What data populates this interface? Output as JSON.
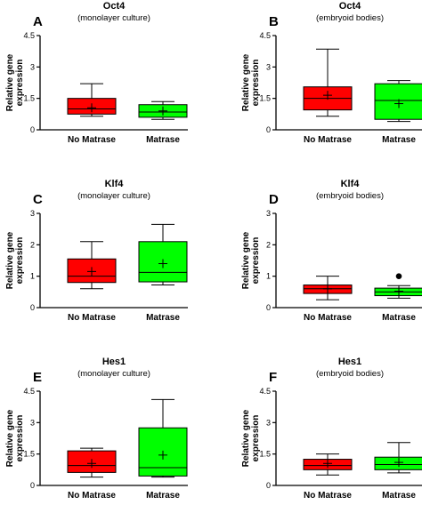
{
  "panels": [
    {
      "label": "A",
      "title": "Oct4",
      "subtitle": "(monolayer culture)"
    },
    {
      "label": "B",
      "title": "Oct4",
      "subtitle": "(embryoid bodies)"
    },
    {
      "label": "C",
      "title": "Klf4",
      "subtitle": "(monolayer culture)"
    },
    {
      "label": "D",
      "title": "Klf4",
      "subtitle": "(embryoid bodies)"
    },
    {
      "label": "E",
      "title": "Hes1",
      "subtitle": "(monolayer culture)"
    },
    {
      "label": "F",
      "title": "Hes1",
      "subtitle": "(embryoid bodies)"
    }
  ],
  "colors": {
    "no_matrase": "#ff0000",
    "matrase": "#00ff00"
  },
  "chart_data": [
    {
      "type": "boxplot",
      "panel": "A",
      "title": "Oct4",
      "subtitle": "(monolayer culture)",
      "ylabel": "Relative gene\nexpression",
      "ylim": [
        0,
        4.5
      ],
      "yticks": [
        "0",
        "1.5",
        "3",
        "4.5"
      ],
      "ytick_values": [
        0,
        1.5,
        3,
        4.5
      ],
      "categories": [
        "No Matrase",
        "Matrase"
      ],
      "boxes": [
        {
          "min": 0.65,
          "q1": 0.75,
          "median": 1.0,
          "q3": 1.5,
          "max": 2.2,
          "mean": 1.05
        },
        {
          "min": 0.5,
          "q1": 0.6,
          "median": 0.85,
          "q3": 1.2,
          "max": 1.35,
          "mean": 0.9
        }
      ]
    },
    {
      "type": "boxplot",
      "panel": "B",
      "title": "Oct4",
      "subtitle": "(embryoid bodies)",
      "ylabel": "Relative gene\nexpression",
      "ylim": [
        0,
        4.5
      ],
      "yticks": [
        "0",
        "1.5",
        "3",
        "4.5"
      ],
      "ytick_values": [
        0,
        1.5,
        3,
        4.5
      ],
      "categories": [
        "No Matrase",
        "Matrase"
      ],
      "boxes": [
        {
          "min": 0.65,
          "q1": 0.95,
          "median": 1.5,
          "q3": 2.05,
          "max": 3.85,
          "mean": 1.65
        },
        {
          "min": 0.4,
          "q1": 0.5,
          "median": 1.4,
          "q3": 2.2,
          "max": 2.35,
          "mean": 1.25
        }
      ]
    },
    {
      "type": "boxplot",
      "panel": "C",
      "title": "Klf4",
      "subtitle": "(monolayer culture)",
      "ylabel": "Relative gene\nexpression",
      "ylim": [
        0,
        3
      ],
      "yticks": [
        "0",
        "1",
        "2",
        "3"
      ],
      "ytick_values": [
        0,
        1,
        2,
        3
      ],
      "categories": [
        "No Matrase",
        "Matrase"
      ],
      "boxes": [
        {
          "min": 0.6,
          "q1": 0.8,
          "median": 1.0,
          "q3": 1.55,
          "max": 2.1,
          "mean": 1.15
        },
        {
          "min": 0.72,
          "q1": 0.82,
          "median": 1.12,
          "q3": 2.1,
          "max": 2.65,
          "mean": 1.4
        }
      ]
    },
    {
      "type": "boxplot",
      "panel": "D",
      "title": "Klf4",
      "subtitle": "(embryoid bodies)",
      "ylabel": "Relative gene\nexpression",
      "ylim": [
        0,
        3
      ],
      "yticks": [
        "0",
        "1",
        "2",
        "3"
      ],
      "ytick_values": [
        0,
        1,
        2,
        3
      ],
      "categories": [
        "No Matrase",
        "Matrase"
      ],
      "boxes": [
        {
          "min": 0.25,
          "q1": 0.45,
          "median": 0.6,
          "q3": 0.72,
          "max": 1.0,
          "mean": 0.6
        },
        {
          "min": 0.3,
          "q1": 0.38,
          "median": 0.5,
          "q3": 0.62,
          "max": 0.7,
          "mean": 0.52,
          "outliers": [
            1.0
          ]
        }
      ]
    },
    {
      "type": "boxplot",
      "panel": "E",
      "title": "Hes1",
      "subtitle": "(monolayer culture)",
      "ylabel": "Relative gene\nexpression",
      "ylim": [
        0,
        4.5
      ],
      "yticks": [
        "0",
        "1.5",
        "3",
        "4.5"
      ],
      "ytick_values": [
        0,
        1.5,
        3,
        4.5
      ],
      "categories": [
        "No Matrase",
        "Matrase"
      ],
      "boxes": [
        {
          "min": 0.4,
          "q1": 0.62,
          "median": 0.95,
          "q3": 1.65,
          "max": 1.78,
          "mean": 1.05
        },
        {
          "min": 0.4,
          "q1": 0.45,
          "median": 0.85,
          "q3": 2.75,
          "max": 4.1,
          "mean": 1.45
        }
      ]
    },
    {
      "type": "boxplot",
      "panel": "F",
      "title": "Hes1",
      "subtitle": "(embryoid bodies)",
      "ylabel": "Relative gene\nexpression",
      "ylim": [
        0,
        4.5
      ],
      "yticks": [
        "0",
        "1.5",
        "3",
        "4.5"
      ],
      "ytick_values": [
        0,
        1.5,
        3,
        4.5
      ],
      "categories": [
        "No Matrase",
        "Matrase"
      ],
      "boxes": [
        {
          "min": 0.5,
          "q1": 0.75,
          "median": 0.95,
          "q3": 1.25,
          "max": 1.5,
          "mean": 1.05
        },
        {
          "min": 0.6,
          "q1": 0.75,
          "median": 1.0,
          "q3": 1.35,
          "max": 2.05,
          "mean": 1.1
        }
      ]
    }
  ]
}
